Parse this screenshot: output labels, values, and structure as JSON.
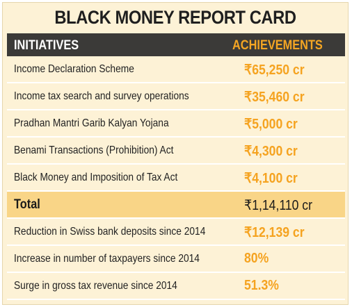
{
  "title": "BLACK MONEY REPORT CARD",
  "columns": {
    "initiatives": "INITIATIVES",
    "achievements": "ACHIEVEMENTS"
  },
  "rows": [
    {
      "label": "Income Declaration Scheme",
      "value": "₹65,250 cr"
    },
    {
      "label": "Income tax search and survey operations",
      "value": "₹35,460 cr"
    },
    {
      "label": "Pradhan Mantri Garib Kalyan Yojana",
      "value": "₹5,000 cr"
    },
    {
      "label": "Benami Transactions (Prohibition) Act",
      "value": "₹4,300 cr"
    },
    {
      "label": "Black Money and Imposition of Tax Act",
      "value": "₹4,100 cr"
    },
    {
      "label": "Total",
      "value": "₹1,14,110 cr"
    },
    {
      "label": "Reduction in Swiss bank deposits since 2014",
      "value": "₹12,139 cr"
    },
    {
      "label": "Increase in number of taxpayers since 2014",
      "value": "80%"
    },
    {
      "label": "Surge in gross tax revenue since 2014",
      "value": "51.3%"
    }
  ],
  "colors": {
    "background": "#fdf2d6",
    "header": "#3b3a38",
    "accent": "#f5a623",
    "total_row": "#f9d587"
  }
}
